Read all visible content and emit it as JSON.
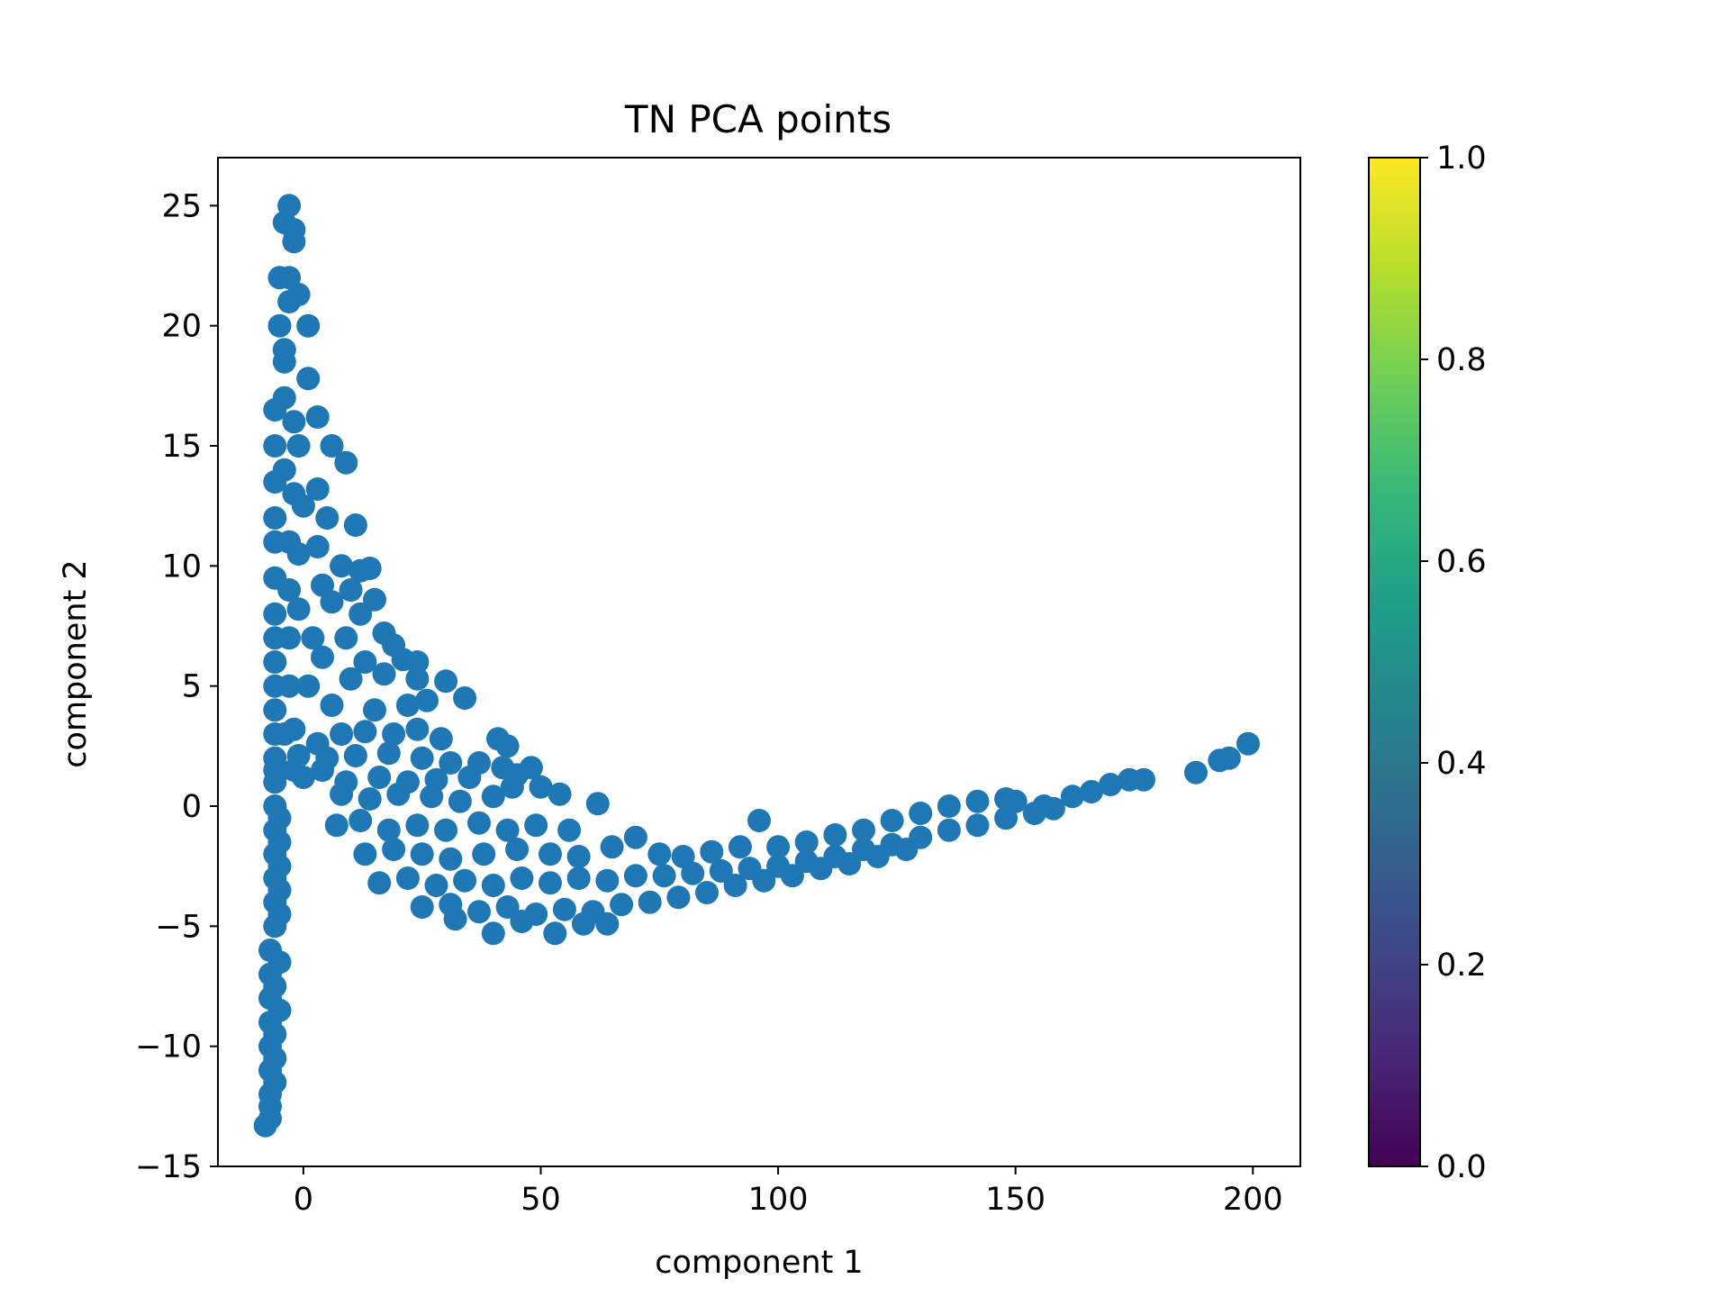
{
  "chart_data": {
    "type": "scatter",
    "title": "TN PCA points",
    "xlabel": "component 1",
    "ylabel": "component 2",
    "xlim": [
      -18,
      210
    ],
    "ylim": [
      -15,
      27
    ],
    "xticks": [
      0,
      50,
      100,
      150,
      200
    ],
    "yticks": [
      -15,
      -10,
      -5,
      0,
      5,
      10,
      15,
      20,
      25
    ],
    "xtick_labels": [
      "0",
      "50",
      "100",
      "150",
      "200"
    ],
    "ytick_labels": [
      "−15",
      "−10",
      "−5",
      "0",
      "5",
      "10",
      "15",
      "20",
      "25"
    ],
    "point_color": "#1f77b4",
    "grid": false,
    "colorbar": {
      "colormap": "viridis",
      "range": [
        0.0,
        1.0
      ],
      "ticks": [
        0.0,
        0.2,
        0.4,
        0.6,
        0.8,
        1.0
      ],
      "tick_labels": [
        "0.0",
        "0.2",
        "0.4",
        "0.6",
        "0.8",
        "1.0"
      ],
      "colors": [
        "#440154",
        "#482878",
        "#3e4989",
        "#31688e",
        "#26828e",
        "#1f9e89",
        "#35b779",
        "#6ece58",
        "#b5de2b",
        "#fde725"
      ]
    },
    "series": [
      {
        "values": [
          [
            -3,
            25
          ],
          [
            -4,
            24.3
          ],
          [
            -2,
            23.5
          ],
          [
            -5,
            22
          ],
          [
            -3,
            21
          ],
          [
            -1,
            21.3
          ],
          [
            -5,
            20
          ],
          [
            1,
            20
          ],
          [
            -4,
            18.5
          ],
          [
            1,
            17.8
          ],
          [
            -6,
            16.5
          ],
          [
            -2,
            16
          ],
          [
            3,
            16.2
          ],
          [
            -6,
            15
          ],
          [
            -1,
            15
          ],
          [
            6,
            15
          ],
          [
            9,
            14.3
          ],
          [
            -6,
            13.5
          ],
          [
            -2,
            13
          ],
          [
            3,
            13.2
          ],
          [
            -6,
            12
          ],
          [
            0,
            12.5
          ],
          [
            5,
            12
          ],
          [
            11,
            11.7
          ],
          [
            -6,
            11
          ],
          [
            -1,
            10.5
          ],
          [
            3,
            10.8
          ],
          [
            8,
            10
          ],
          [
            12,
            9.8
          ],
          [
            14,
            9.9
          ],
          [
            -6,
            9.5
          ],
          [
            4,
            9.2
          ],
          [
            10,
            9
          ],
          [
            -6,
            8
          ],
          [
            -1,
            8.2
          ],
          [
            6,
            8.5
          ],
          [
            12,
            8
          ],
          [
            15,
            8.6
          ],
          [
            -6,
            7
          ],
          [
            2,
            7
          ],
          [
            9,
            7
          ],
          [
            17,
            7.2
          ],
          [
            19,
            6.7
          ],
          [
            -6,
            6
          ],
          [
            4,
            6.2
          ],
          [
            13,
            6
          ],
          [
            21,
            6.1
          ],
          [
            24,
            6
          ],
          [
            -6,
            5
          ],
          [
            1,
            5
          ],
          [
            10,
            5.3
          ],
          [
            17,
            5.5
          ],
          [
            24,
            5.3
          ],
          [
            30,
            5.2
          ],
          [
            -6,
            4
          ],
          [
            6,
            4.2
          ],
          [
            15,
            4
          ],
          [
            22,
            4.2
          ],
          [
            26,
            4.4
          ],
          [
            34,
            4.5
          ],
          [
            -6,
            3
          ],
          [
            -2,
            3.2
          ],
          [
            3,
            2.6
          ],
          [
            8,
            3
          ],
          [
            13,
            3.1
          ],
          [
            19,
            3
          ],
          [
            24,
            3.2
          ],
          [
            29,
            2.8
          ],
          [
            41,
            2.8
          ],
          [
            43,
            2.5
          ],
          [
            -6,
            2
          ],
          [
            -1,
            2.1
          ],
          [
            5,
            2
          ],
          [
            11,
            2.1
          ],
          [
            18,
            2.2
          ],
          [
            25,
            2
          ],
          [
            31,
            1.8
          ],
          [
            37,
            1.8
          ],
          [
            -6,
            1
          ],
          [
            -2,
            1.5
          ],
          [
            0,
            1.2
          ],
          [
            4,
            1.5
          ],
          [
            9,
            1
          ],
          [
            16,
            1.2
          ],
          [
            22,
            1
          ],
          [
            28,
            1.1
          ],
          [
            35,
            1.2
          ],
          [
            42,
            1.6
          ],
          [
            45,
            1.3
          ],
          [
            48,
            1.6
          ],
          [
            -6,
            0
          ],
          [
            8,
            0.5
          ],
          [
            14,
            0.3
          ],
          [
            20,
            0.5
          ],
          [
            27,
            0.4
          ],
          [
            33,
            0.2
          ],
          [
            40,
            0.4
          ],
          [
            44,
            0.8
          ],
          [
            50,
            0.8
          ],
          [
            54,
            0.5
          ],
          [
            62,
            0.1
          ],
          [
            -6,
            -1
          ],
          [
            7,
            -0.8
          ],
          [
            12,
            -0.6
          ],
          [
            18,
            -1
          ],
          [
            24,
            -0.8
          ],
          [
            30,
            -1
          ],
          [
            37,
            -0.7
          ],
          [
            43,
            -1
          ],
          [
            49,
            -0.8
          ],
          [
            56,
            -1
          ],
          [
            -6,
            -2
          ],
          [
            13,
            -2
          ],
          [
            19,
            -1.8
          ],
          [
            25,
            -2
          ],
          [
            31,
            -2.2
          ],
          [
            38,
            -2
          ],
          [
            45,
            -1.8
          ],
          [
            52,
            -2
          ],
          [
            58,
            -2.1
          ],
          [
            65,
            -1.7
          ],
          [
            70,
            -1.3
          ],
          [
            75,
            -2
          ],
          [
            80,
            -2.1
          ],
          [
            86,
            -1.9
          ],
          [
            92,
            -1.7
          ],
          [
            96,
            -0.6
          ],
          [
            100,
            -1.7
          ],
          [
            106,
            -1.5
          ],
          [
            112,
            -1.2
          ],
          [
            118,
            -1
          ],
          [
            124,
            -0.6
          ],
          [
            130,
            -0.3
          ],
          [
            136,
            0
          ],
          [
            142,
            0.2
          ],
          [
            148,
            0.3
          ],
          [
            150,
            0.2
          ],
          [
            156,
            0
          ],
          [
            162,
            0.4
          ],
          [
            166,
            0.6
          ],
          [
            170,
            0.9
          ],
          [
            174,
            1.1
          ],
          [
            177,
            1.1
          ],
          [
            -6,
            -3
          ],
          [
            16,
            -3.2
          ],
          [
            22,
            -3
          ],
          [
            28,
            -3.3
          ],
          [
            34,
            -3.1
          ],
          [
            40,
            -3.3
          ],
          [
            46,
            -3
          ],
          [
            52,
            -3.2
          ],
          [
            58,
            -3
          ],
          [
            64,
            -3.1
          ],
          [
            70,
            -2.9
          ],
          [
            76,
            -2.9
          ],
          [
            82,
            -2.8
          ],
          [
            88,
            -2.7
          ],
          [
            94,
            -2.6
          ],
          [
            100,
            -2.5
          ],
          [
            106,
            -2.3
          ],
          [
            112,
            -2.1
          ],
          [
            118,
            -1.8
          ],
          [
            124,
            -1.6
          ],
          [
            130,
            -1.3
          ],
          [
            136,
            -1
          ],
          [
            142,
            -0.8
          ],
          [
            148,
            -0.5
          ],
          [
            154,
            -0.3
          ],
          [
            158,
            -0.1
          ],
          [
            -6,
            -4
          ],
          [
            25,
            -4.2
          ],
          [
            31,
            -4.1
          ],
          [
            37,
            -4.4
          ],
          [
            43,
            -4.2
          ],
          [
            49,
            -4.5
          ],
          [
            55,
            -4.3
          ],
          [
            61,
            -4.4
          ],
          [
            67,
            -4.1
          ],
          [
            73,
            -4
          ],
          [
            79,
            -3.8
          ],
          [
            85,
            -3.6
          ],
          [
            91,
            -3.3
          ],
          [
            97,
            -3.1
          ],
          [
            103,
            -2.9
          ],
          [
            109,
            -2.6
          ],
          [
            115,
            -2.4
          ],
          [
            121,
            -2.1
          ],
          [
            127,
            -1.8
          ],
          [
            -6,
            -5
          ],
          [
            32,
            -4.7
          ],
          [
            40,
            -5.3
          ],
          [
            46,
            -4.8
          ],
          [
            53,
            -5.3
          ],
          [
            59,
            -4.9
          ],
          [
            64,
            -4.9
          ],
          [
            -7,
            -6
          ],
          [
            -5,
            -6.5
          ],
          [
            -7,
            -7
          ],
          [
            -6,
            -7.5
          ],
          [
            -7,
            -8
          ],
          [
            -5,
            -8.5
          ],
          [
            -7,
            -9
          ],
          [
            -6,
            -9.5
          ],
          [
            -7,
            -10
          ],
          [
            -6,
            -10.5
          ],
          [
            -7,
            -11
          ],
          [
            -6,
            -11.5
          ],
          [
            -7,
            -12
          ],
          [
            -7,
            -12.5
          ],
          [
            -7,
            -13
          ],
          [
            -8,
            -13.3
          ],
          [
            -6,
            1.5
          ],
          [
            -5,
            -0.5
          ],
          [
            -5,
            -1.5
          ],
          [
            -5,
            -2.5
          ],
          [
            -5,
            -3.5
          ],
          [
            -5,
            -4.5
          ],
          [
            -4,
            3
          ],
          [
            -3,
            5
          ],
          [
            -3,
            7
          ],
          [
            -3,
            9
          ],
          [
            -3,
            11
          ],
          [
            -4,
            14
          ],
          [
            -4,
            17
          ],
          [
            -4,
            19
          ],
          [
            -3,
            22
          ],
          [
            -2,
            24
          ],
          [
            188,
            1.4
          ],
          [
            193,
            1.9
          ],
          [
            195,
            2
          ],
          [
            199,
            2.6
          ]
        ]
      }
    ]
  }
}
